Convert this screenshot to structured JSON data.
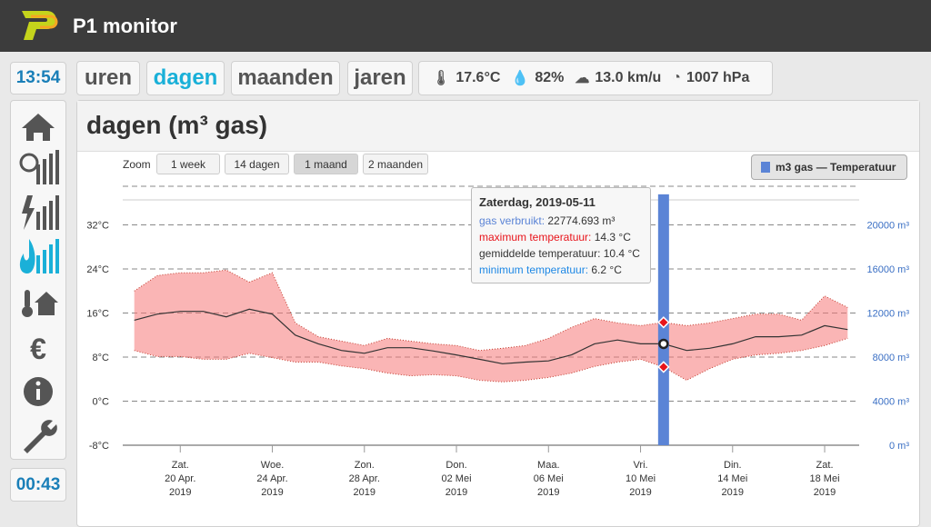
{
  "header": {
    "title": "P1 monitor"
  },
  "sidebar": {
    "time": "13:54",
    "timer": "00:43"
  },
  "tabs": {
    "items": [
      "uren",
      "dagen",
      "maanden",
      "jaren"
    ],
    "active": 1
  },
  "weather": {
    "temperature": "17.6°C",
    "humidity": "82%",
    "wind": "13.0 km/u",
    "pressure": "1007 hPa"
  },
  "panel": {
    "title": "dagen (m³ gas)"
  },
  "zoom": {
    "label": "Zoom",
    "buttons": [
      "1 week",
      "14 dagen",
      "1 maand",
      "2 maanden"
    ],
    "active": 2
  },
  "chart_data": {
    "type": "line",
    "legend": "m3 gas — Temperatuur",
    "x": [
      "2019-04-18",
      "2019-04-19",
      "2019-04-20",
      "2019-04-21",
      "2019-04-22",
      "2019-04-23",
      "2019-04-24",
      "2019-04-25",
      "2019-04-26",
      "2019-04-27",
      "2019-04-28",
      "2019-04-29",
      "2019-04-30",
      "2019-05-01",
      "2019-05-02",
      "2019-05-03",
      "2019-05-04",
      "2019-05-05",
      "2019-05-06",
      "2019-05-07",
      "2019-05-08",
      "2019-05-09",
      "2019-05-10",
      "2019-05-11",
      "2019-05-12",
      "2019-05-13",
      "2019-05-14",
      "2019-05-15",
      "2019-05-16",
      "2019-05-17",
      "2019-05-18",
      "2019-05-19"
    ],
    "xlim": [
      "2019-04-17T12:00Z",
      "2019-05-19T12:00Z"
    ],
    "xticks": [
      {
        "value": "2019-04-20",
        "label": [
          "Zat.",
          "20 Apr.",
          "2019"
        ]
      },
      {
        "value": "2019-04-24",
        "label": [
          "Woe.",
          "24 Apr.",
          "2019"
        ]
      },
      {
        "value": "2019-04-28",
        "label": [
          "Zon.",
          "28 Apr.",
          "2019"
        ]
      },
      {
        "value": "2019-05-02",
        "label": [
          "Don.",
          "02 Mei",
          "2019"
        ]
      },
      {
        "value": "2019-05-06",
        "label": [
          "Maa.",
          "06 Mei",
          "2019"
        ]
      },
      {
        "value": "2019-05-10",
        "label": [
          "Vri.",
          "10 Mei",
          "2019"
        ]
      },
      {
        "value": "2019-05-14",
        "label": [
          "Din.",
          "14 Mei",
          "2019"
        ]
      },
      {
        "value": "2019-05-18",
        "label": [
          "Zat.",
          "18 Mei",
          "2019"
        ]
      }
    ],
    "ylim": [
      -8,
      40
    ],
    "yticks": [
      {
        "value": -8,
        "label": "-8°C"
      },
      {
        "value": 0,
        "label": "0°C"
      },
      {
        "value": 8,
        "label": "8°C"
      },
      {
        "value": 16,
        "label": "16°C"
      },
      {
        "value": 24,
        "label": "24°C"
      },
      {
        "value": 32,
        "label": "32°C"
      }
    ],
    "y2lim": [
      0,
      24000
    ],
    "y2ticks": [
      {
        "value": 0,
        "label": "0 m³"
      },
      {
        "value": 4000,
        "label": "4000 m³"
      },
      {
        "value": 8000,
        "label": "8000 m³"
      },
      {
        "value": 12000,
        "label": "12000 m³"
      },
      {
        "value": 16000,
        "label": "16000 m³"
      },
      {
        "value": 20000,
        "label": "20000 m³"
      }
    ],
    "grid": true,
    "series": [
      {
        "name": "gas verbruikt",
        "type": "bar",
        "axis": "y2",
        "color": "#5b84d6",
        "x": [
          "2019-05-11"
        ],
        "values": [
          22774.693
        ]
      },
      {
        "name": "maximum temperatuur",
        "color": "#e8141b",
        "values": [
          20,
          22.8,
          23.3,
          23.3,
          23.8,
          21.6,
          23.3,
          14.2,
          11.7,
          10.9,
          10.1,
          11.4,
          10.9,
          10.4,
          10.1,
          9.2,
          9.6,
          10.1,
          11.4,
          13.4,
          15,
          14.2,
          13.7,
          14.3,
          13.7,
          14.2,
          15,
          15.8,
          15.8,
          14.7,
          19.1,
          17
        ]
      },
      {
        "name": "gemiddelde temperatuur",
        "color": "#333333",
        "values": [
          14.7,
          15.8,
          16.3,
          16.3,
          15.3,
          16.7,
          15.8,
          12,
          10.4,
          9.2,
          8.7,
          9.7,
          9.7,
          9.1,
          8.4,
          7.6,
          6.8,
          7.1,
          7.3,
          8.4,
          10.4,
          11.1,
          10.4,
          10.4,
          9.2,
          9.6,
          10.4,
          11.7,
          11.7,
          12,
          13.7,
          13
        ]
      },
      {
        "name": "minimum temperatuur",
        "color": "#1e88e5",
        "values": [
          9.2,
          8.1,
          8.1,
          7.6,
          7.6,
          8.7,
          7.9,
          7.1,
          7.1,
          6.4,
          5.9,
          5.1,
          4.6,
          4.8,
          4.6,
          3.8,
          3.5,
          3.8,
          4.3,
          5.1,
          6.3,
          7.1,
          7.6,
          6.2,
          3.8,
          5.9,
          7.6,
          8.4,
          8.7,
          9.2,
          10.1,
          11.4
        ]
      }
    ],
    "tooltip": {
      "index": 23,
      "title": "Zaterdag, 2019-05-11",
      "values": [
        "22774.693 m³",
        "14.3 °C",
        "10.4 °C",
        "6.2 °C"
      ]
    }
  }
}
